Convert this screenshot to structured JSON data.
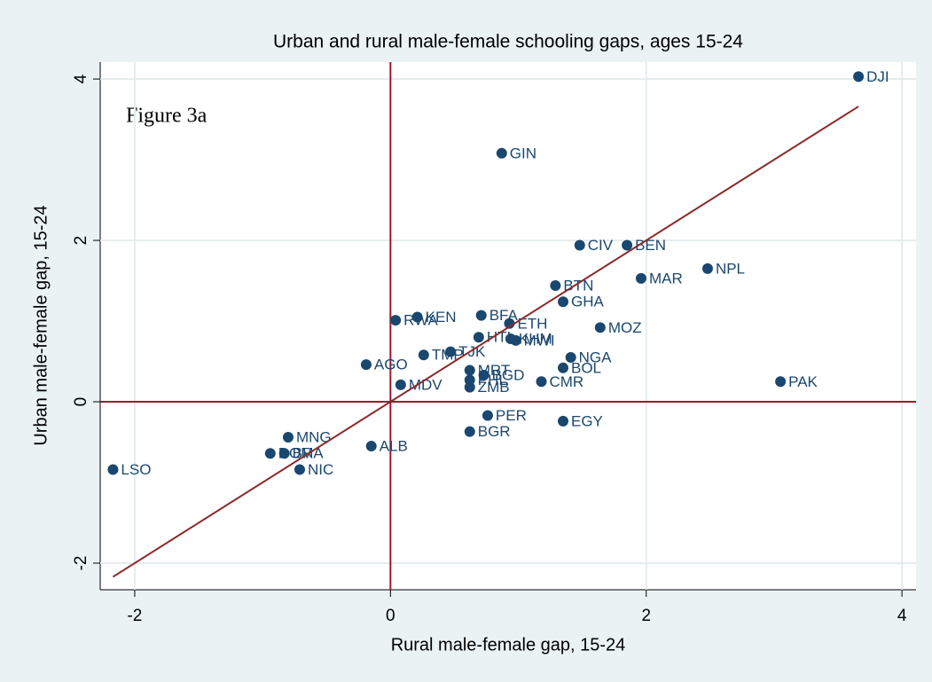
{
  "chart_data": {
    "type": "scatter",
    "title": "Urban and rural male-female schooling gaps, ages 15-24",
    "annotation": "Figure 3a",
    "x_label": "Rural male-female gap, 15-24",
    "y_label": "Urban male-female gap, 15-24",
    "xlim": [
      -2.27,
      4.11
    ],
    "ylim": [
      -2.33,
      4.21
    ],
    "xticks": [
      -2,
      0,
      2,
      4
    ],
    "yticks": [
      -2,
      0,
      2,
      4
    ],
    "grid": true,
    "color": "#1a476f",
    "ref_color": "#a3172b",
    "series": [
      {
        "name": "Countries",
        "color": "#1a476f",
        "labels": [
          "DJI",
          "GIN",
          "CIV",
          "BEN",
          "NPL",
          "MAR",
          "BTN",
          "GHA",
          "RWA",
          "KEN",
          "BFA",
          "ETH",
          "MOZ",
          "HTI",
          "KHM",
          "MWI",
          "TJK",
          "TMP",
          "NGA",
          "AGO",
          "BOL",
          "MRT",
          "BGD",
          "CMR",
          "PAK",
          "MDV",
          "PHL",
          "ZMB",
          "PER",
          "EGY",
          "BGR",
          "LSO",
          "NIC",
          "DOM",
          "BRA",
          "ALB",
          "MNG"
        ],
        "x": [
          3.66,
          0.87,
          1.48,
          1.85,
          2.48,
          1.96,
          1.29,
          1.35,
          0.04,
          0.21,
          0.71,
          0.93,
          1.64,
          0.69,
          0.94,
          0.98,
          0.47,
          0.26,
          1.41,
          -0.19,
          1.35,
          0.62,
          0.73,
          1.18,
          3.05,
          0.08,
          0.62,
          0.62,
          0.76,
          1.35,
          0.62,
          -2.17,
          -0.71,
          -0.94,
          -0.83,
          -0.15,
          -0.8
        ],
        "values": [
          4.03,
          3.08,
          1.94,
          1.94,
          1.65,
          1.53,
          1.44,
          1.24,
          1.01,
          1.05,
          1.07,
          0.97,
          0.92,
          0.8,
          0.78,
          0.76,
          0.62,
          0.58,
          0.55,
          0.46,
          0.42,
          0.39,
          0.33,
          0.25,
          0.25,
          0.21,
          0.27,
          0.18,
          -0.17,
          -0.24,
          -0.37,
          -0.84,
          -0.84,
          -0.64,
          -0.64,
          -0.55,
          -0.44
        ]
      },
      {
        "name": "Fitted values",
        "color": "#8b2a2a",
        "x": [
          -2.17,
          3.66
        ],
        "values": [
          -2.17,
          3.66
        ]
      }
    ]
  }
}
